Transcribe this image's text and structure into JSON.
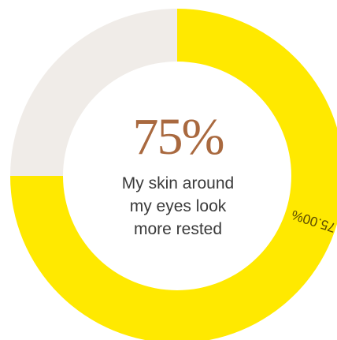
{
  "headline": "75%",
  "caption_lines": [
    "My skin around",
    "my eyes look",
    "more rested"
  ],
  "chart_data": {
    "type": "pie",
    "donut": true,
    "slices": [
      {
        "value": 75.0,
        "color": "#ffe900",
        "label": "75.00%"
      },
      {
        "value": 25.0,
        "color": "#f0ece8",
        "label": ""
      }
    ],
    "label_color": "#5a4a00"
  }
}
